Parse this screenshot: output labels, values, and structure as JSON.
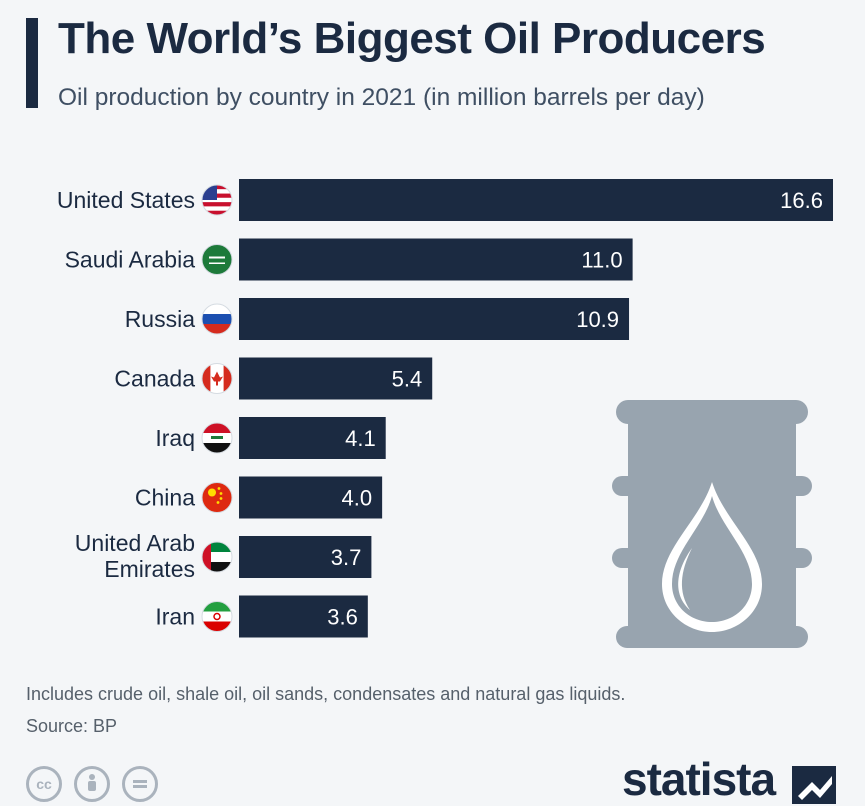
{
  "header": {
    "title": "The World’s Biggest Oil Producers",
    "subtitle": "Oil production by country in 2021 (in million barrels per day)"
  },
  "chart_data": {
    "type": "bar",
    "orientation": "horizontal",
    "categories": [
      "United States",
      "Saudi Arabia",
      "Russia",
      "Canada",
      "Iraq",
      "China",
      "United Arab Emirates",
      "Iran"
    ],
    "category_lines": [
      [
        "United States"
      ],
      [
        "Saudi Arabia"
      ],
      [
        "Russia"
      ],
      [
        "Canada"
      ],
      [
        "Iraq"
      ],
      [
        "China"
      ],
      [
        "United Arab",
        "Emirates"
      ],
      [
        "Iran"
      ]
    ],
    "values": [
      16.6,
      11.0,
      10.9,
      5.4,
      4.1,
      4.0,
      3.7,
      3.6
    ],
    "value_labels": [
      "16.6",
      "11.0",
      "10.9",
      "5.4",
      "4.1",
      "4.0",
      "3.7",
      "3.6"
    ],
    "flags": [
      "us-flag-icon",
      "saudi-arabia-flag-icon",
      "russia-flag-icon",
      "canada-flag-icon",
      "iraq-flag-icon",
      "china-flag-icon",
      "uae-flag-icon",
      "iran-flag-icon"
    ],
    "xlim": [
      0,
      16.6
    ],
    "title": "The World’s Biggest Oil Producers",
    "subtitle": "Oil production by country in 2021 (in million barrels per day)",
    "xlabel": "",
    "ylabel": "",
    "grid": false,
    "bar_color": "#1b2a41"
  },
  "footer": {
    "note": "Includes crude oil, shale oil, oil sands, condensates and natural gas liquids.",
    "source": "Source: BP",
    "brand": "statista"
  },
  "decorations": {
    "barrel": "oil-barrel-icon",
    "license_icons": [
      "cc-icon",
      "by-icon",
      "nd-icon"
    ]
  },
  "colors": {
    "background": "#f4f6f8",
    "bar": "#1b2a41",
    "barrel": "#98a4af",
    "text": "#1b2a41"
  }
}
